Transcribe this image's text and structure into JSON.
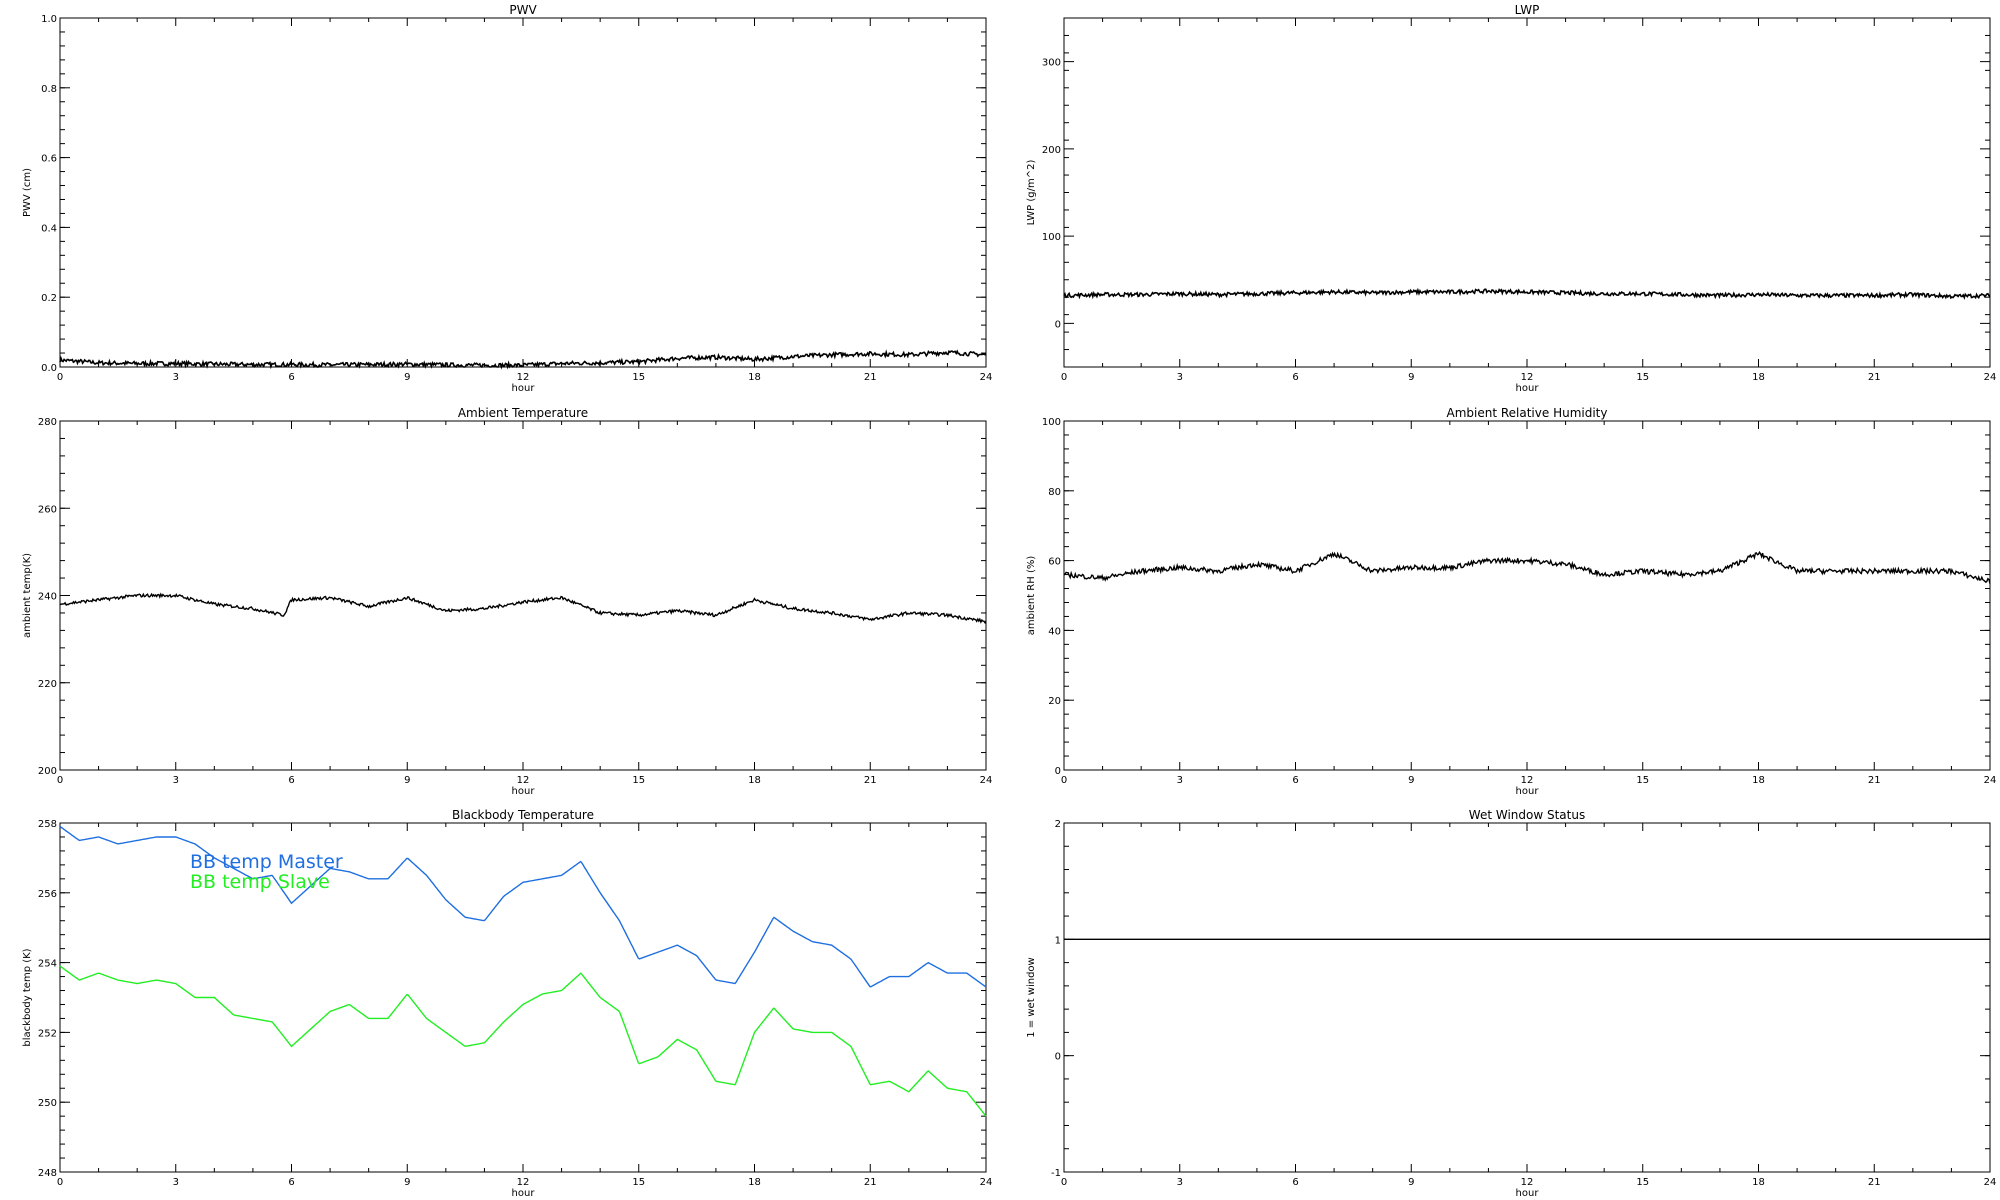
{
  "panels": [
    {
      "title": "PWV",
      "ylabel": "PWV (cm)",
      "xlabel": "hour",
      "ylim": [
        0,
        1.0
      ],
      "yticks": [
        "0.0",
        "0.2",
        "0.4",
        "0.6",
        "0.8",
        "1.0"
      ],
      "xticks": [
        "0",
        "3",
        "6",
        "9",
        "12",
        "15",
        "18",
        "21",
        "24"
      ],
      "xlim": [
        0,
        24
      ]
    },
    {
      "title": "LWP",
      "ylabel": "LWP (g/m^2)",
      "xlabel": "hour",
      "ylim": [
        -50,
        350
      ],
      "yticks": [
        "0",
        "100",
        "200",
        "300"
      ],
      "xticks": [
        "0",
        "3",
        "6",
        "9",
        "12",
        "15",
        "18",
        "21",
        "24"
      ],
      "xlim": [
        0,
        24
      ]
    },
    {
      "title": "Ambient Temperature",
      "ylabel": "ambient temp(K)",
      "xlabel": "hour",
      "ylim": [
        200,
        280
      ],
      "yticks": [
        "200",
        "220",
        "240",
        "260",
        "280"
      ],
      "xticks": [
        "0",
        "3",
        "6",
        "9",
        "12",
        "15",
        "18",
        "21",
        "24"
      ],
      "xlim": [
        0,
        24
      ]
    },
    {
      "title": "Ambient Relative Humidity",
      "ylabel": "ambient RH (%)",
      "xlabel": "hour",
      "ylim": [
        0,
        100
      ],
      "yticks": [
        "0",
        "20",
        "40",
        "60",
        "80",
        "100"
      ],
      "xticks": [
        "0",
        "3",
        "6",
        "9",
        "12",
        "15",
        "18",
        "21",
        "24"
      ],
      "xlim": [
        0,
        24
      ]
    },
    {
      "title": "Blackbody Temperature",
      "ylabel": "blackbody temp (K)",
      "xlabel": "hour",
      "ylim": [
        248,
        258
      ],
      "yticks": [
        "248",
        "250",
        "252",
        "254",
        "256",
        "258"
      ],
      "xticks": [
        "0",
        "3",
        "6",
        "9",
        "12",
        "15",
        "18",
        "21",
        "24"
      ],
      "xlim": [
        0,
        24
      ],
      "legend": [
        "BB temp Master",
        "BB temp Slave"
      ]
    },
    {
      "title": "Wet Window Status",
      "ylabel": "1 = wet window",
      "xlabel": "hour",
      "ylim": [
        -1,
        2
      ],
      "yticks": [
        "-1",
        "0",
        "1",
        "2"
      ],
      "xticks": [
        "0",
        "3",
        "6",
        "9",
        "12",
        "15",
        "18",
        "21",
        "24"
      ],
      "xlim": [
        0,
        24
      ]
    }
  ],
  "colors": {
    "axis": "#000000",
    "trace": "#000000",
    "master": "#1f6fe0",
    "slave": "#22ee22"
  },
  "chart_data": [
    {
      "type": "line",
      "title": "PWV",
      "xlabel": "hour",
      "ylabel": "PWV (cm)",
      "xlim": [
        0,
        24
      ],
      "ylim": [
        0,
        1.0
      ],
      "grid": false,
      "series": [
        {
          "x": [
            0,
            1,
            2,
            3,
            4,
            5,
            6,
            7,
            8,
            9,
            10,
            11,
            12,
            13,
            14,
            15,
            16,
            17,
            18,
            19,
            20,
            21,
            22,
            23,
            24
          ],
          "y": [
            0.02,
            0.012,
            0.01,
            0.01,
            0.008,
            0.007,
            0.007,
            0.006,
            0.007,
            0.008,
            0.006,
            0.005,
            0.005,
            0.01,
            0.012,
            0.015,
            0.025,
            0.028,
            0.022,
            0.03,
            0.035,
            0.038,
            0.035,
            0.042,
            0.035
          ]
        }
      ]
    },
    {
      "type": "line",
      "title": "LWP",
      "xlabel": "hour",
      "ylabel": "LWP (g/m^2)",
      "xlim": [
        0,
        24
      ],
      "ylim": [
        -50,
        350
      ],
      "grid": false,
      "series": [
        {
          "x": [
            0,
            1,
            2,
            3,
            4,
            5,
            6,
            7,
            8,
            9,
            10,
            11,
            12,
            13,
            14,
            15,
            16,
            17,
            18,
            19,
            20,
            21,
            22,
            23,
            24
          ],
          "y": [
            32,
            33,
            33,
            34,
            33,
            34,
            35,
            36,
            35,
            36,
            36,
            37,
            36,
            35,
            34,
            34,
            33,
            32,
            33,
            32,
            32,
            32,
            33,
            31,
            32
          ]
        }
      ]
    },
    {
      "type": "line",
      "title": "Ambient Temperature",
      "xlabel": "hour",
      "ylabel": "ambient temp(K)",
      "xlim": [
        0,
        24
      ],
      "ylim": [
        200,
        280
      ],
      "grid": false,
      "series": [
        {
          "x": [
            0,
            1,
            2,
            3,
            4,
            5,
            5.8,
            6,
            7,
            8,
            9,
            10,
            11,
            12,
            13,
            14,
            15,
            16,
            17,
            18,
            19,
            20,
            21,
            22,
            23,
            24
          ],
          "y": [
            238,
            239,
            240,
            240,
            238,
            237,
            235.5,
            239,
            239.5,
            237.5,
            239.5,
            236.5,
            237,
            238.5,
            239.5,
            236,
            235.5,
            236.5,
            235.5,
            239,
            237,
            236,
            234.5,
            236,
            235.5,
            234
          ]
        }
      ]
    },
    {
      "type": "line",
      "title": "Ambient Relative Humidity",
      "xlabel": "hour",
      "ylabel": "ambient RH (%)",
      "xlim": [
        0,
        24
      ],
      "ylim": [
        0,
        100
      ],
      "grid": false,
      "series": [
        {
          "x": [
            0,
            1,
            2,
            3,
            4,
            5,
            6,
            7,
            8,
            9,
            10,
            11,
            12,
            13,
            14,
            15,
            16,
            17,
            18,
            19,
            20,
            21,
            22,
            23,
            24
          ],
          "y": [
            56,
            55,
            57,
            58,
            57,
            59,
            57,
            62,
            57,
            58,
            58,
            60,
            60,
            59,
            56,
            57,
            56,
            57,
            62,
            57,
            57,
            57,
            57,
            57,
            54
          ]
        }
      ]
    },
    {
      "type": "line",
      "title": "Blackbody Temperature",
      "xlabel": "hour",
      "ylabel": "blackbody temp (K)",
      "xlim": [
        0,
        24
      ],
      "ylim": [
        248,
        258
      ],
      "grid": false,
      "legend": "top-left",
      "series": [
        {
          "name": "BB temp Master",
          "color": "#1f6fe0",
          "x": [
            0,
            0.5,
            1,
            1.5,
            2,
            2.5,
            3,
            3.5,
            4,
            4.5,
            5,
            5.5,
            6,
            6.5,
            7,
            7.5,
            8,
            8.5,
            9,
            9.5,
            10,
            10.5,
            11,
            11.5,
            12,
            12.5,
            13,
            13.5,
            14,
            14.5,
            15,
            15.5,
            16,
            16.5,
            17,
            17.5,
            18,
            18.5,
            19,
            19.5,
            20,
            20.5,
            21,
            21.5,
            22,
            22.5,
            23,
            23.5,
            24
          ],
          "y": [
            257.9,
            257.5,
            257.6,
            257.4,
            257.5,
            257.6,
            257.6,
            257.4,
            257.0,
            256.7,
            256.4,
            256.5,
            255.7,
            256.2,
            256.7,
            256.6,
            256.4,
            256.4,
            257.0,
            256.5,
            255.8,
            255.3,
            255.2,
            255.9,
            256.3,
            256.4,
            256.5,
            256.9,
            256.0,
            255.2,
            254.1,
            254.3,
            254.5,
            254.2,
            253.5,
            253.4,
            254.3,
            255.3,
            254.9,
            254.6,
            254.5,
            254.1,
            253.3,
            253.6,
            253.6,
            254.0,
            253.7,
            253.7,
            253.3
          ]
        },
        {
          "name": "BB temp Slave",
          "color": "#22ee22",
          "x": [
            0,
            0.5,
            1,
            1.5,
            2,
            2.5,
            3,
            3.5,
            4,
            4.5,
            5,
            5.5,
            6,
            6.5,
            7,
            7.5,
            8,
            8.5,
            9,
            9.5,
            10,
            10.5,
            11,
            11.5,
            12,
            12.5,
            13,
            13.5,
            14,
            14.5,
            15,
            15.5,
            16,
            16.5,
            17,
            17.5,
            18,
            18.5,
            19,
            19.5,
            20,
            20.5,
            21,
            21.5,
            22,
            22.5,
            23,
            23.5,
            24
          ],
          "y": [
            253.9,
            253.5,
            253.7,
            253.5,
            253.4,
            253.5,
            253.4,
            253.0,
            253.0,
            252.5,
            252.4,
            252.3,
            251.6,
            252.1,
            252.6,
            252.8,
            252.4,
            252.4,
            253.1,
            252.4,
            252.0,
            251.6,
            251.7,
            252.3,
            252.8,
            253.1,
            253.2,
            253.7,
            253.0,
            252.6,
            251.1,
            251.3,
            251.8,
            251.5,
            250.6,
            250.5,
            252.0,
            252.7,
            252.1,
            252.0,
            252.0,
            251.6,
            250.5,
            250.6,
            250.3,
            250.9,
            250.4,
            250.3,
            249.6
          ]
        }
      ]
    },
    {
      "type": "line",
      "title": "Wet Window Status",
      "xlabel": "hour",
      "ylabel": "1 = wet window",
      "xlim": [
        0,
        24
      ],
      "ylim": [
        -1,
        2
      ],
      "grid": false,
      "series": [
        {
          "x": [
            0,
            24
          ],
          "y": [
            1,
            1
          ]
        }
      ]
    }
  ]
}
